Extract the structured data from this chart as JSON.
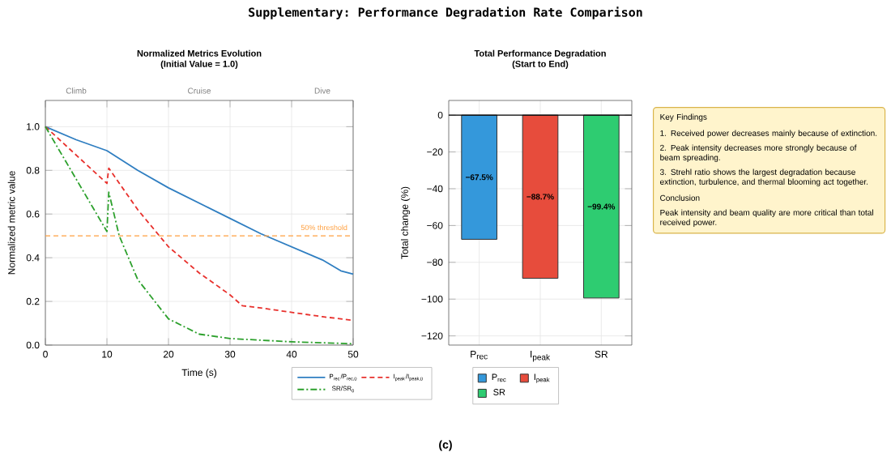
{
  "chart_data": [
    {
      "type": "other",
      "title": "Supplementary: Performance Degradation Rate Comparison",
      "annotations": [
        "(c)"
      ]
    },
    {
      "type": "line",
      "title": "Normalized Metrics Evolution",
      "subtitle": "(Initial Value = 1.0)",
      "xlabel": "Time (s)",
      "ylabel": "Normalized metric value",
      "xlim": [
        0,
        50
      ],
      "ylim": [
        0,
        1.12
      ],
      "xticks": [
        0,
        10,
        20,
        30,
        40,
        50
      ],
      "yticks": [
        {
          "value": 0,
          "label": "0.0"
        },
        0.2,
        0.4,
        0.6,
        0.8,
        {
          "value": 1,
          "label": "1.0"
        }
      ],
      "grid": true,
      "legend": "bottom",
      "annotations": [
        "Climb",
        "Cruise",
        "Dive"
      ],
      "ref_lines": [
        {
          "axis": "y",
          "value": 0.5,
          "label": "50% threshold",
          "color": "#ffa040",
          "line_style": "dashed"
        }
      ],
      "series": [
        {
          "name": "P$_{rec}$/P$_{rec,0}$",
          "color": "#2f7ec1",
          "line_style": "solid",
          "x": [
            0,
            5,
            10,
            15,
            20,
            25,
            30,
            35,
            40,
            45,
            48,
            50
          ],
          "values": [
            1.0,
            0.94,
            0.89,
            0.8,
            0.72,
            0.65,
            0.58,
            0.51,
            0.45,
            0.39,
            0.34,
            0.325
          ]
        },
        {
          "name": "I$_{peak}$/I$_{peak,0}$",
          "color": "#e8302c",
          "line_style": "dashed",
          "x": [
            0,
            5,
            10,
            10.3,
            15,
            20,
            25,
            30,
            32,
            35,
            40,
            45,
            50
          ],
          "values": [
            1.0,
            0.87,
            0.74,
            0.81,
            0.62,
            0.45,
            0.33,
            0.23,
            0.18,
            0.17,
            0.15,
            0.13,
            0.113
          ]
        },
        {
          "name": "SR/SR$_{0}$",
          "color": "#2ca02c",
          "line_style": "dashdot",
          "x": [
            0,
            5,
            10,
            10.3,
            12,
            15,
            20,
            25,
            30,
            40,
            50
          ],
          "values": [
            1.0,
            0.76,
            0.52,
            0.7,
            0.5,
            0.3,
            0.12,
            0.05,
            0.03,
            0.015,
            0.006
          ]
        }
      ]
    },
    {
      "type": "bar",
      "title": "Total Performance Degradation",
      "subtitle": "(Start to End)",
      "ylabel": "Total change (%)",
      "categories": [
        "P$_{rec}$",
        "I$_{peak}$",
        "SR"
      ],
      "series": [
        {
          "name": "P$_{rec}$",
          "color": "#3498db",
          "values": [
            -67.5,
            null,
            null
          ],
          "value_labels": [
            "−67.5%",
            null,
            null
          ]
        },
        {
          "name": "I$_{peak}$",
          "color": "#e74c3c",
          "values": [
            null,
            -88.7,
            null
          ],
          "value_labels": [
            null,
            "−88.7%",
            null
          ]
        },
        {
          "name": "SR",
          "color": "#2ecc71",
          "values": [
            null,
            null,
            -99.4
          ],
          "value_labels": [
            null,
            null,
            "−99.4%"
          ]
        }
      ],
      "ylim": [
        -125,
        8
      ],
      "yticks": [
        {
          "value": 0,
          "label": "0"
        },
        {
          "value": -20,
          "label": "−20"
        },
        {
          "value": -40,
          "label": "−40"
        },
        {
          "value": -60,
          "label": "−60"
        },
        {
          "value": -80,
          "label": "−80"
        },
        {
          "value": -100,
          "label": "−100"
        },
        {
          "value": -120,
          "label": "−120"
        }
      ],
      "grid": true,
      "legend": "bottom",
      "ref_lines": [
        {
          "axis": "y",
          "value": 0,
          "color": "#000000",
          "line_style": "solid"
        }
      ]
    },
    {
      "type": "other",
      "annotations": [
        "Key Findings",
        "1. Received power decreases mainly because of extinction.",
        "2. Peak intensity decreases more strongly because of beam spreading.",
        "3. Strehl ratio shows the largest degradation because extinction, turbulence, and thermal blooming act together.",
        "Conclusion",
        "Peak intensity and beam quality are more critical than total received power."
      ]
    }
  ]
}
